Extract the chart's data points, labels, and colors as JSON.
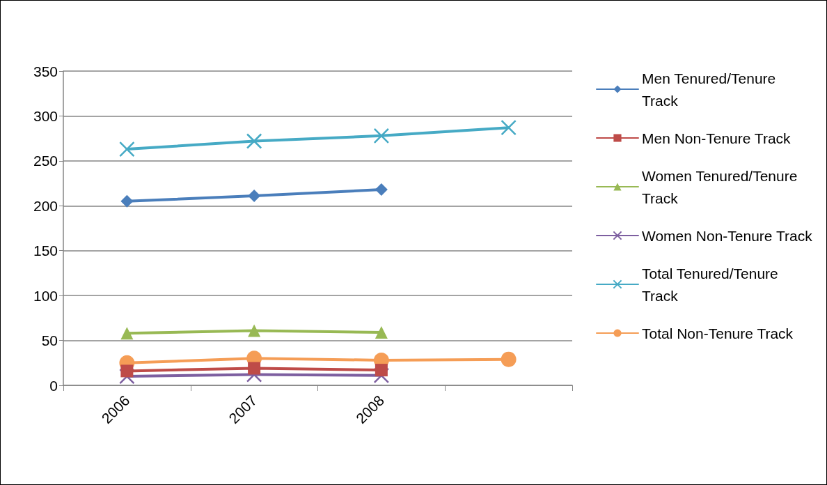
{
  "chart_data": {
    "type": "line",
    "categories": [
      "2006",
      "2007",
      "2008",
      null
    ],
    "series": [
      {
        "name": "Men Tenured/Tenure Track",
        "color": "#4a7ebb",
        "marker": "diamond",
        "values": [
          205,
          211,
          218,
          null
        ]
      },
      {
        "name": "Men Non-Tenure Track",
        "color": "#be4b48",
        "marker": "square",
        "values": [
          16,
          19,
          17,
          null
        ]
      },
      {
        "name": "Women Tenured/Tenure Track",
        "color": "#98b954",
        "marker": "triangle",
        "values": [
          58,
          61,
          59,
          null
        ]
      },
      {
        "name": "Women Non-Tenure Track",
        "color": "#7d5fa0",
        "marker": "cross",
        "values": [
          10,
          12,
          11,
          null
        ]
      },
      {
        "name": "Total Tenured/Tenure Track",
        "color": "#46aac5",
        "marker": "cross",
        "values": [
          263,
          272,
          278,
          287
        ]
      },
      {
        "name": "Total Non-Tenure Track",
        "color": "#f59d56",
        "marker": "circle",
        "values": [
          25,
          30,
          28,
          29
        ]
      }
    ],
    "ylim": [
      0,
      350
    ],
    "yticks": [
      0,
      50,
      100,
      150,
      200,
      250,
      300,
      350
    ],
    "grid": "y",
    "legend": "right",
    "line_style": "solid"
  }
}
